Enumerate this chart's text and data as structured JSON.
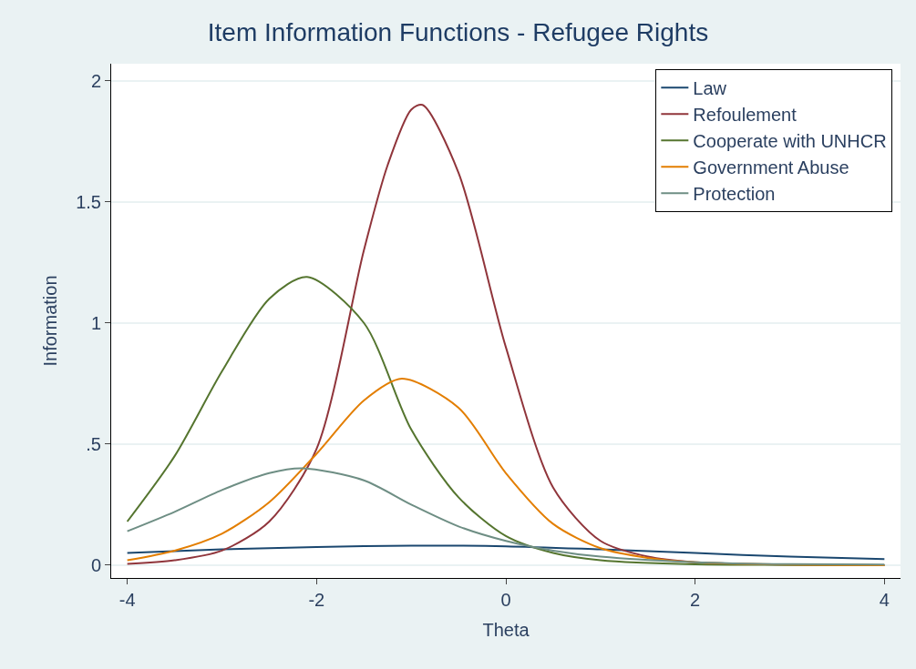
{
  "chart_data": {
    "type": "line",
    "title": "Item Information Functions - Refugee Rights",
    "xlabel": "Theta",
    "ylabel": "Information",
    "xlim": [
      -4.17,
      4.17
    ],
    "xticks": [
      -4,
      -2,
      0,
      2,
      4
    ],
    "ylim": [
      -0.053,
      2.07
    ],
    "yticks": [
      0,
      {
        "value": 0.5,
        "label": ".5"
      },
      1,
      1.5,
      2
    ],
    "grid": "y",
    "legend": "top right",
    "marker": "none",
    "line_style": "solid",
    "series": [
      {
        "name": "Law",
        "color": "#1a476f",
        "x": [
          -4,
          -3,
          -2,
          -1,
          0,
          1,
          2,
          3,
          4
        ],
        "values": [
          0.05,
          0.065,
          0.075,
          0.08,
          0.078,
          0.065,
          0.05,
          0.035,
          0.025
        ]
      },
      {
        "name": "Refoulement",
        "color": "#90353b",
        "x": [
          -4,
          -3.5,
          -3,
          -2.5,
          -2,
          -1.5,
          -1.25,
          -1,
          -0.88,
          -0.5,
          0,
          0.5,
          1,
          1.5,
          2,
          3,
          4
        ],
        "values": [
          0.005,
          0.02,
          0.06,
          0.18,
          0.48,
          1.3,
          1.65,
          1.88,
          1.9,
          1.62,
          0.9,
          0.32,
          0.1,
          0.035,
          0.012,
          0.002,
          0
        ]
      },
      {
        "name": "Cooperate with UNHCR",
        "color": "#55752f",
        "x": [
          -4,
          -3.5,
          -3,
          -2.5,
          -2.1,
          -1.5,
          -1,
          -0.5,
          0,
          0.5,
          1,
          2,
          3,
          4
        ],
        "values": [
          0.18,
          0.45,
          0.8,
          1.1,
          1.19,
          1.0,
          0.56,
          0.28,
          0.12,
          0.05,
          0.02,
          0.003,
          0.001,
          0
        ]
      },
      {
        "name": "Government Abuse",
        "color": "#e37e00",
        "x": [
          -4,
          -3.5,
          -3,
          -2.5,
          -2,
          -1.5,
          -1.1,
          -0.5,
          0,
          0.5,
          1,
          1.5,
          2,
          3,
          4
        ],
        "values": [
          0.02,
          0.06,
          0.13,
          0.26,
          0.46,
          0.68,
          0.77,
          0.65,
          0.38,
          0.17,
          0.07,
          0.03,
          0.012,
          0.002,
          0
        ]
      },
      {
        "name": "Protection",
        "color": "#6e8e84",
        "x": [
          -4,
          -3.5,
          -3,
          -2.5,
          -2.15,
          -1.5,
          -1,
          -0.5,
          0,
          0.5,
          1,
          2,
          3,
          4
        ],
        "values": [
          0.14,
          0.22,
          0.31,
          0.38,
          0.4,
          0.35,
          0.25,
          0.16,
          0.1,
          0.06,
          0.035,
          0.012,
          0.004,
          0.002
        ]
      }
    ]
  }
}
